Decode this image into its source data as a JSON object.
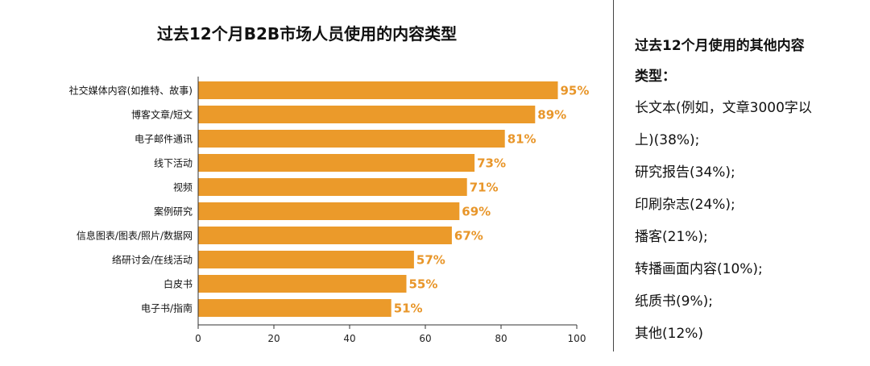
{
  "colors": {
    "bar": "#EB9A2A",
    "value_label": "#E8962A",
    "axis": "#333333"
  },
  "chart_data": {
    "type": "bar",
    "orientation": "horizontal",
    "title": "过去12个月B2B市场人员使用的内容类型",
    "categories": [
      "社交媒体内容(如推特、故事)",
      "博客文章/短文",
      "电子邮件通讯",
      "线下活动",
      "视频",
      "案例研究",
      "信息图表/图表/照片/数据网",
      "络研讨会/在线活动",
      "白皮书",
      "电子书/指南"
    ],
    "values": [
      95,
      89,
      81,
      73,
      71,
      69,
      67,
      57,
      55,
      51
    ],
    "value_labels": [
      "95%",
      "89%",
      "81%",
      "73%",
      "71%",
      "69%",
      "67%",
      "57%",
      "55%",
      "51%"
    ],
    "xlim": [
      0,
      100
    ],
    "xticks": [
      0,
      20,
      40,
      60,
      80,
      100
    ],
    "xlabel": "",
    "ylabel": "",
    "grid": false,
    "legend": "none"
  },
  "side_panel": {
    "heading_line1": "过去12个月使用的其他内容",
    "heading_line2": "类型：",
    "items": [
      "长文本(例如，文章3000字以",
      "上)(38%);",
      "研究报告(34%);",
      "印刷杂志(24%);",
      "播客(21%);",
      "转播画面内容(10%);",
      "纸质书(9%);",
      "其他(12%)"
    ]
  }
}
